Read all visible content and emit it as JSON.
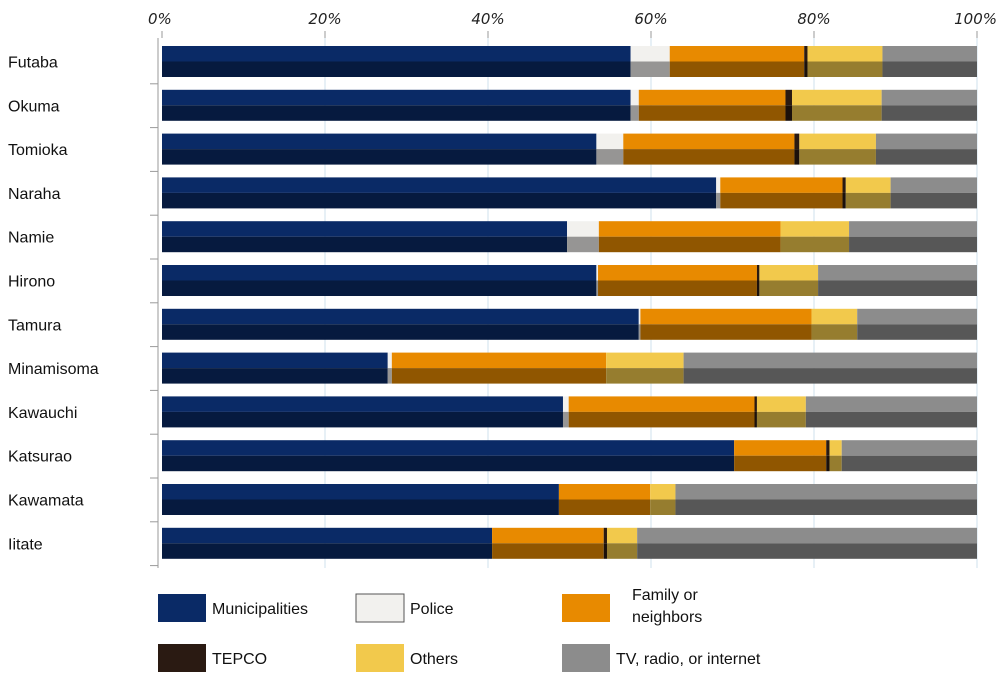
{
  "chart_data": {
    "type": "bar",
    "orientation": "horizontal",
    "stacked": true,
    "xlim": [
      0,
      100
    ],
    "x_ticks": [
      "0%",
      "20%",
      "40%",
      "60%",
      "80%",
      "100%"
    ],
    "grid": true,
    "legend_position": "bottom",
    "categories": [
      "Futaba",
      "Okuma",
      "Tomioka",
      "Naraha",
      "Namie",
      "Hirono",
      "Tamura",
      "Minamisoma",
      "Kawauchi",
      "Katsurao",
      "Kawamata",
      "Iitate"
    ],
    "series": [
      {
        "name": "Municipalities",
        "color": "#0a2a66",
        "values": [
          57.5,
          57.5,
          53.3,
          68.0,
          49.7,
          53.3,
          58.5,
          27.7,
          49.2,
          70.2,
          48.7,
          40.5
        ]
      },
      {
        "name": "Police",
        "color": "#f2f1ee",
        "values": [
          4.8,
          1.0,
          3.3,
          0.5,
          3.9,
          0.2,
          0.2,
          0.5,
          0.7,
          0.0,
          0.0,
          0.0
        ]
      },
      {
        "name": "Family or neighbors",
        "color": "#e88a00",
        "values": [
          16.5,
          18.0,
          21.0,
          15.0,
          22.3,
          19.5,
          21.0,
          26.3,
          22.8,
          11.3,
          11.2,
          13.7
        ]
      },
      {
        "name": "TEPCO",
        "color": "#2a1a12",
        "values": [
          0.4,
          0.8,
          0.6,
          0.4,
          0.0,
          0.3,
          0.0,
          0.0,
          0.3,
          0.4,
          0.0,
          0.4
        ]
      },
      {
        "name": "Others",
        "color": "#f2c94c",
        "values": [
          9.2,
          11.0,
          9.4,
          5.5,
          8.4,
          7.2,
          5.6,
          9.5,
          6.0,
          1.5,
          3.1,
          3.7
        ]
      },
      {
        "name": "TV, radio, or internet",
        "color": "#8c8c8c",
        "values": [
          11.6,
          11.7,
          12.4,
          10.6,
          15.7,
          19.5,
          14.7,
          36.0,
          21.0,
          16.6,
          37.0,
          41.7
        ]
      }
    ]
  },
  "legend": {
    "items": [
      {
        "label": "Municipalities",
        "color": "#0a2a66"
      },
      {
        "label": "Police",
        "color": "#f2f1ee"
      },
      {
        "label_lines": [
          "Family or",
          "neighbors"
        ],
        "color": "#e88a00"
      },
      {
        "label": "TEPCO",
        "color": "#2a1a12"
      },
      {
        "label": "Others",
        "color": "#f2c94c"
      },
      {
        "label": "TV, radio, or internet",
        "color": "#8c8c8c"
      }
    ]
  }
}
